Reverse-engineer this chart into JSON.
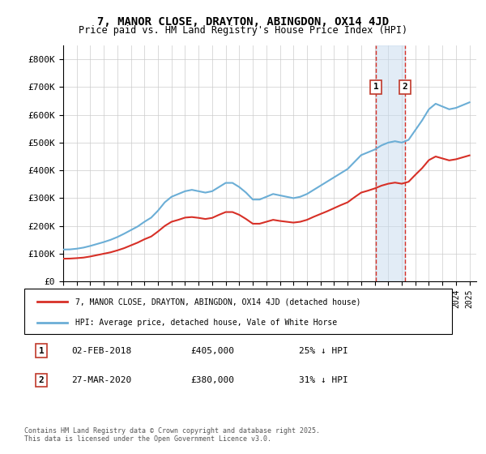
{
  "title": "7, MANOR CLOSE, DRAYTON, ABINGDON, OX14 4JD",
  "subtitle": "Price paid vs. HM Land Registry's House Price Index (HPI)",
  "ylabel_ticks": [
    "£0",
    "£100K",
    "£200K",
    "£300K",
    "£400K",
    "£500K",
    "£600K",
    "£700K",
    "£800K"
  ],
  "ytick_values": [
    0,
    100000,
    200000,
    300000,
    400000,
    500000,
    600000,
    700000,
    800000
  ],
  "ylim": [
    0,
    850000
  ],
  "xlim_start": 1995.0,
  "xlim_end": 2025.5,
  "hpi_color": "#6baed6",
  "price_color": "#d73027",
  "annotation_line_color": "#d73027",
  "shade_color": "#c6dbef",
  "grid_color": "#cccccc",
  "background_color": "#ffffff",
  "legend_label_price": "7, MANOR CLOSE, DRAYTON, ABINGDON, OX14 4JD (detached house)",
  "legend_label_hpi": "HPI: Average price, detached house, Vale of White Horse",
  "transaction1_label": "1",
  "transaction1_date": "02-FEB-2018",
  "transaction1_price": "£405,000",
  "transaction1_hpi": "25% ↓ HPI",
  "transaction1_year": 2018.08,
  "transaction2_label": "2",
  "transaction2_date": "27-MAR-2020",
  "transaction2_price": "£380,000",
  "transaction2_hpi": "31% ↓ HPI",
  "transaction2_year": 2020.23,
  "footer": "Contains HM Land Registry data © Crown copyright and database right 2025.\nThis data is licensed under the Open Government Licence v3.0.",
  "hpi_x": [
    1995.0,
    1995.5,
    1996.0,
    1996.5,
    1997.0,
    1997.5,
    1998.0,
    1998.5,
    1999.0,
    1999.5,
    2000.0,
    2000.5,
    2001.0,
    2001.5,
    2002.0,
    2002.5,
    2003.0,
    2003.5,
    2004.0,
    2004.5,
    2005.0,
    2005.5,
    2006.0,
    2006.5,
    2007.0,
    2007.5,
    2008.0,
    2008.5,
    2009.0,
    2009.5,
    2010.0,
    2010.5,
    2011.0,
    2011.5,
    2012.0,
    2012.5,
    2013.0,
    2013.5,
    2014.0,
    2014.5,
    2015.0,
    2015.5,
    2016.0,
    2016.5,
    2017.0,
    2017.5,
    2018.0,
    2018.5,
    2019.0,
    2019.5,
    2020.0,
    2020.5,
    2021.0,
    2021.5,
    2022.0,
    2022.5,
    2023.0,
    2023.5,
    2024.0,
    2024.5,
    2025.0
  ],
  "hpi_y": [
    115000,
    115500,
    118000,
    122000,
    128000,
    135000,
    142000,
    150000,
    160000,
    172000,
    185000,
    198000,
    215000,
    230000,
    255000,
    285000,
    305000,
    315000,
    325000,
    330000,
    325000,
    320000,
    325000,
    340000,
    355000,
    355000,
    340000,
    320000,
    295000,
    295000,
    305000,
    315000,
    310000,
    305000,
    300000,
    305000,
    315000,
    330000,
    345000,
    360000,
    375000,
    390000,
    405000,
    430000,
    455000,
    465000,
    475000,
    490000,
    500000,
    505000,
    500000,
    510000,
    545000,
    580000,
    620000,
    640000,
    630000,
    620000,
    625000,
    635000,
    645000
  ],
  "price_x": [
    1995.0,
    1995.5,
    1996.0,
    1996.5,
    1997.0,
    1997.5,
    1998.0,
    1998.5,
    1999.0,
    1999.5,
    2000.0,
    2000.5,
    2001.0,
    2001.5,
    2002.0,
    2002.5,
    2003.0,
    2003.5,
    2004.0,
    2004.5,
    2005.0,
    2005.5,
    2006.0,
    2006.5,
    2007.0,
    2007.5,
    2008.0,
    2008.5,
    2009.0,
    2009.5,
    2010.0,
    2010.5,
    2011.0,
    2011.5,
    2012.0,
    2012.5,
    2013.0,
    2013.5,
    2014.0,
    2014.5,
    2015.0,
    2015.5,
    2016.0,
    2016.5,
    2017.0,
    2017.5,
    2018.0,
    2018.5,
    2019.0,
    2019.5,
    2020.0,
    2020.5,
    2021.0,
    2021.5,
    2022.0,
    2022.5,
    2023.0,
    2023.5,
    2024.0,
    2024.5,
    2025.0
  ],
  "price_y": [
    82000,
    82500,
    84000,
    86000,
    90000,
    95000,
    100000,
    105000,
    112000,
    120000,
    130000,
    140000,
    152000,
    162000,
    180000,
    200000,
    215000,
    222000,
    230000,
    232000,
    229000,
    225000,
    229000,
    240000,
    250000,
    250000,
    240000,
    225000,
    208000,
    208000,
    215000,
    222000,
    218000,
    215000,
    212000,
    215000,
    222000,
    233000,
    243000,
    253000,
    264000,
    275000,
    285000,
    303000,
    320000,
    327000,
    335000,
    345000,
    352000,
    356000,
    352000,
    359000,
    384000,
    408000,
    437000,
    450000,
    443000,
    436000,
    440000,
    447000,
    454000
  ]
}
